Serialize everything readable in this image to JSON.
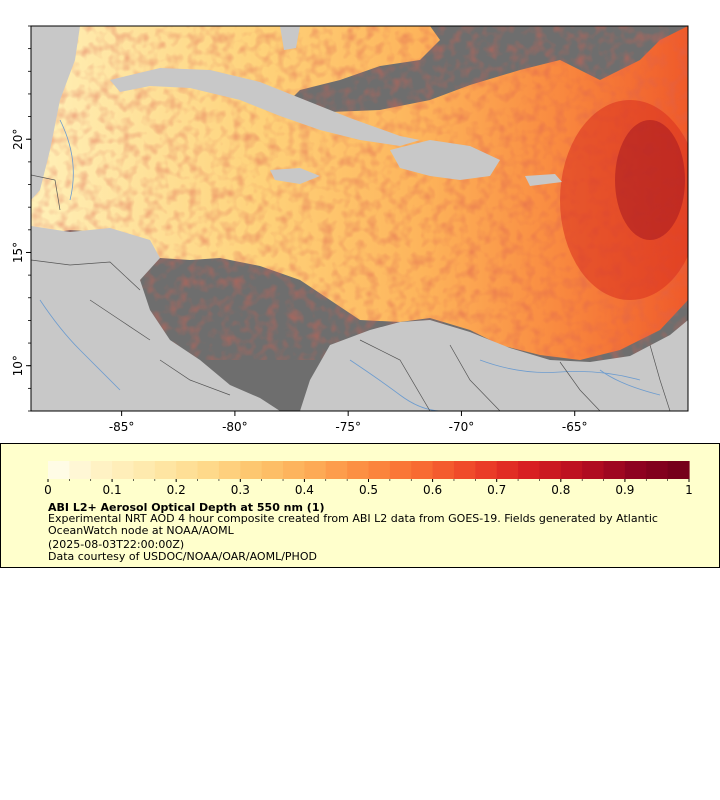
{
  "map": {
    "lat_labels": [
      "20°",
      "15°",
      "10°"
    ],
    "lat_values": [
      20,
      15,
      10
    ],
    "lon_labels": [
      "-85°",
      "-80°",
      "-75°",
      "-70°",
      "-65°"
    ],
    "lon_values": [
      -85,
      -80,
      -75,
      -70,
      -65
    ],
    "lon_range": [
      -89,
      -60
    ],
    "lat_range": [
      8,
      25
    ],
    "colors": {
      "land": "#c8c8c8",
      "nodata": "#6e6e6e",
      "rivers": "#6d9ccf",
      "borders": "#555555"
    }
  },
  "legend": {
    "tick_labels": [
      "0",
      "0.1",
      "0.2",
      "0.3",
      "0.4",
      "0.5",
      "0.6",
      "0.7",
      "0.8",
      "0.9",
      "1"
    ],
    "colormap": [
      "#ffffee",
      "#fff2c4",
      "#fee8a8",
      "#fed98a",
      "#fdc36a",
      "#fdaa55",
      "#fc8a3f",
      "#f86b32",
      "#ee4328",
      "#d81f22",
      "#b80f20",
      "#8e0220",
      "#700018"
    ],
    "title": "ABI L2+ Aerosol Optical Depth at 550 nm (1)",
    "description": "Experimental NRT AOD 4 hour composite created from ABI L2 data from GOES-19. Fields generated by Atlantic OceanWatch node at NOAA/AOML",
    "time": "(2025-08-03T22:00:00Z)",
    "credit": "Data courtesy of USDOC/NOAA/OAR/AOML/PHOD"
  }
}
